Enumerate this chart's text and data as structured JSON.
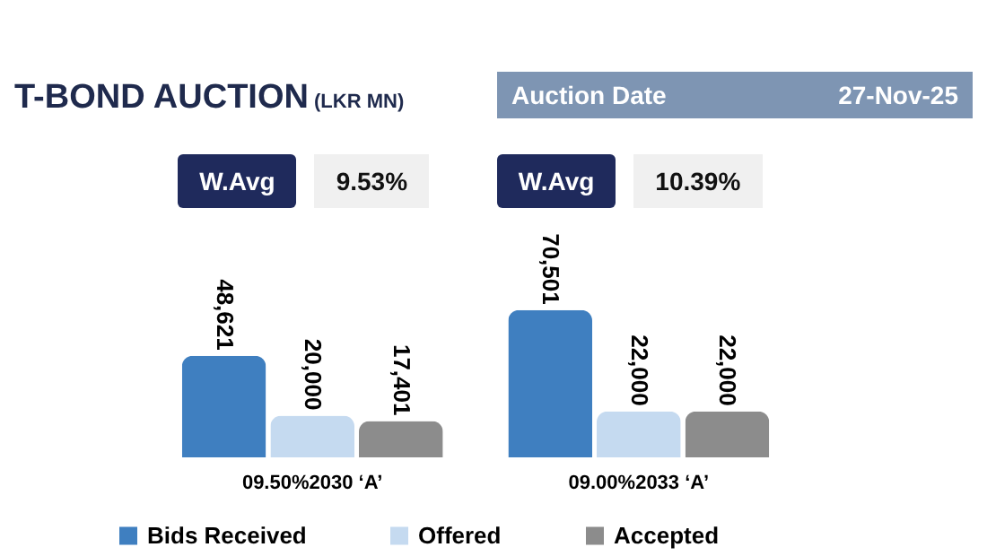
{
  "chart_data": {
    "type": "bar",
    "title": "T-BOND AUCTION",
    "subtitle": "(LKR MN)",
    "annotations": [
      "Auction Date",
      "27-Nov-25",
      "W.Avg",
      "9.53%",
      "W.Avg",
      "10.39%"
    ],
    "categories": [
      "09.50%2030 ‘A’",
      "09.00%2033 ‘A’"
    ],
    "series": [
      {
        "name": "Bids Received",
        "color": "#3f7fc0",
        "values": [
          48621,
          70501
        ],
        "value_labels": [
          "48,621",
          "70,501"
        ]
      },
      {
        "name": "Offered",
        "color": "#c5daf0",
        "values": [
          20000,
          22000
        ],
        "value_labels": [
          "20,000",
          "22,000"
        ]
      },
      {
        "name": "Accepted",
        "color": "#8c8c8c",
        "values": [
          17401,
          22000
        ],
        "value_labels": [
          "17,401",
          "22,000"
        ]
      }
    ],
    "legend": "bottom",
    "grid": false
  }
}
